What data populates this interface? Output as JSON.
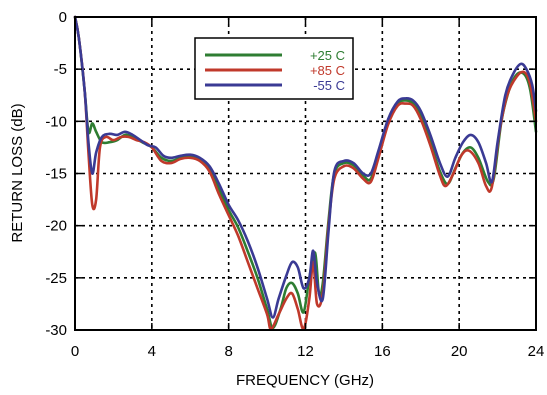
{
  "chart_data": {
    "type": "line",
    "title": "",
    "xlabel": "FREQUENCY (GHz)",
    "ylabel": "RETURN LOSS (dB)",
    "xlim": [
      0,
      24
    ],
    "ylim": [
      -30,
      0
    ],
    "xticks": [
      "0",
      "4",
      "8",
      "12",
      "16",
      "20",
      "24"
    ],
    "yticks": [
      "0",
      "-5",
      "-10",
      "-15",
      "-20",
      "-25",
      "-30"
    ],
    "grid": true,
    "legend_position": "top-center",
    "series": [
      {
        "name": "+25 C",
        "color": "#2e7d32",
        "points": [
          [
            0,
            0
          ],
          [
            0.2,
            -2
          ],
          [
            0.5,
            -7
          ],
          [
            0.7,
            -11
          ],
          [
            0.9,
            -10.2
          ],
          [
            1.1,
            -11
          ],
          [
            1.4,
            -12
          ],
          [
            1.8,
            -12
          ],
          [
            2.2,
            -11.8
          ],
          [
            2.6,
            -11.3
          ],
          [
            3,
            -11.5
          ],
          [
            3.5,
            -12
          ],
          [
            4,
            -12.5
          ],
          [
            4.5,
            -13.5
          ],
          [
            5,
            -13.8
          ],
          [
            5.5,
            -13.5
          ],
          [
            6,
            -13.3
          ],
          [
            6.5,
            -13.6
          ],
          [
            7,
            -14.5
          ],
          [
            7.5,
            -16.5
          ],
          [
            8,
            -18.5
          ],
          [
            8.5,
            -20.2
          ],
          [
            9,
            -22.5
          ],
          [
            9.5,
            -25
          ],
          [
            10,
            -28
          ],
          [
            10.3,
            -29.8
          ],
          [
            10.7,
            -28
          ],
          [
            11,
            -26
          ],
          [
            11.3,
            -25.5
          ],
          [
            11.6,
            -26.5
          ],
          [
            11.9,
            -28.3
          ],
          [
            12.2,
            -25
          ],
          [
            12.5,
            -22.6
          ],
          [
            12.7,
            -26.5
          ],
          [
            12.9,
            -25.5
          ],
          [
            13.2,
            -19.5
          ],
          [
            13.5,
            -15
          ],
          [
            14,
            -14
          ],
          [
            14.5,
            -14.2
          ],
          [
            15,
            -15.2
          ],
          [
            15.4,
            -15.5
          ],
          [
            15.8,
            -13
          ],
          [
            16.3,
            -10
          ],
          [
            16.8,
            -8.3
          ],
          [
            17.2,
            -8
          ],
          [
            17.6,
            -8.3
          ],
          [
            18,
            -9.5
          ],
          [
            18.5,
            -12
          ],
          [
            19,
            -14.8
          ],
          [
            19.4,
            -16
          ],
          [
            19.8,
            -14.5
          ],
          [
            20.2,
            -13
          ],
          [
            20.6,
            -12.5
          ],
          [
            21,
            -13.5
          ],
          [
            21.5,
            -15.8
          ],
          [
            21.8,
            -15.5
          ],
          [
            22.2,
            -10
          ],
          [
            22.6,
            -7
          ],
          [
            23,
            -5.5
          ],
          [
            23.4,
            -5.5
          ],
          [
            23.7,
            -7
          ],
          [
            24,
            -11
          ]
        ]
      },
      {
        "name": "+85 C",
        "color": "#c0392b",
        "points": [
          [
            0,
            0
          ],
          [
            0.2,
            -2
          ],
          [
            0.5,
            -7
          ],
          [
            0.7,
            -13
          ],
          [
            0.9,
            -18
          ],
          [
            1.1,
            -17.5
          ],
          [
            1.3,
            -12.5
          ],
          [
            1.6,
            -11.5
          ],
          [
            2,
            -11.8
          ],
          [
            2.4,
            -11.5
          ],
          [
            2.8,
            -11.5
          ],
          [
            3.2,
            -11.8
          ],
          [
            3.6,
            -12
          ],
          [
            4,
            -12.5
          ],
          [
            4.5,
            -13.8
          ],
          [
            5,
            -14
          ],
          [
            5.5,
            -13.6
          ],
          [
            6,
            -13.5
          ],
          [
            6.5,
            -13.8
          ],
          [
            7,
            -14.8
          ],
          [
            7.5,
            -17
          ],
          [
            8,
            -19
          ],
          [
            8.5,
            -21
          ],
          [
            9,
            -23.5
          ],
          [
            9.5,
            -26
          ],
          [
            10,
            -28.5
          ],
          [
            10.2,
            -30
          ],
          [
            10.6,
            -28.5
          ],
          [
            11,
            -27
          ],
          [
            11.3,
            -26.5
          ],
          [
            11.6,
            -28
          ],
          [
            11.9,
            -30
          ],
          [
            12.2,
            -27
          ],
          [
            12.4,
            -23.5
          ],
          [
            12.6,
            -27.5
          ],
          [
            12.9,
            -26.5
          ],
          [
            13.2,
            -20
          ],
          [
            13.5,
            -15.5
          ],
          [
            14,
            -14.3
          ],
          [
            14.5,
            -14.5
          ],
          [
            15,
            -15.5
          ],
          [
            15.4,
            -15.8
          ],
          [
            15.8,
            -13.5
          ],
          [
            16.3,
            -10.3
          ],
          [
            16.8,
            -8.5
          ],
          [
            17.2,
            -8.3
          ],
          [
            17.6,
            -8.5
          ],
          [
            18,
            -9.8
          ],
          [
            18.5,
            -12.3
          ],
          [
            19,
            -15.2
          ],
          [
            19.3,
            -16.2
          ],
          [
            19.7,
            -15
          ],
          [
            20.1,
            -13.3
          ],
          [
            20.5,
            -12.8
          ],
          [
            21,
            -14
          ],
          [
            21.4,
            -16.2
          ],
          [
            21.7,
            -16.3
          ],
          [
            22.1,
            -11
          ],
          [
            22.5,
            -7.5
          ],
          [
            23,
            -5.7
          ],
          [
            23.4,
            -5.3
          ],
          [
            23.7,
            -6.5
          ],
          [
            24,
            -10
          ]
        ]
      },
      {
        "name": "-55 C",
        "color": "#3a3a94",
        "points": [
          [
            0,
            0
          ],
          [
            0.2,
            -2
          ],
          [
            0.5,
            -7
          ],
          [
            0.7,
            -12
          ],
          [
            0.9,
            -15
          ],
          [
            1.1,
            -13
          ],
          [
            1.4,
            -11.5
          ],
          [
            1.8,
            -11.2
          ],
          [
            2.2,
            -11.3
          ],
          [
            2.6,
            -11
          ],
          [
            3,
            -11.3
          ],
          [
            3.4,
            -11.8
          ],
          [
            3.8,
            -12.3
          ],
          [
            4.2,
            -12.5
          ],
          [
            4.6,
            -13.3
          ],
          [
            5,
            -13.5
          ],
          [
            5.5,
            -13.3
          ],
          [
            6,
            -13.2
          ],
          [
            6.5,
            -13.5
          ],
          [
            7,
            -14.3
          ],
          [
            7.5,
            -16
          ],
          [
            8,
            -18
          ],
          [
            8.5,
            -19.5
          ],
          [
            9,
            -21.5
          ],
          [
            9.5,
            -24
          ],
          [
            10,
            -27
          ],
          [
            10.3,
            -28.8
          ],
          [
            10.6,
            -27
          ],
          [
            11,
            -24.8
          ],
          [
            11.3,
            -23.5
          ],
          [
            11.6,
            -24
          ],
          [
            11.9,
            -26
          ],
          [
            12.2,
            -25
          ],
          [
            12.4,
            -22.4
          ],
          [
            12.6,
            -25.5
          ],
          [
            12.9,
            -27
          ],
          [
            13.2,
            -20.5
          ],
          [
            13.5,
            -14.8
          ],
          [
            14,
            -13.8
          ],
          [
            14.5,
            -14
          ],
          [
            15,
            -15
          ],
          [
            15.4,
            -15
          ],
          [
            15.8,
            -12.8
          ],
          [
            16.3,
            -9.8
          ],
          [
            16.8,
            -8.1
          ],
          [
            17.2,
            -7.8
          ],
          [
            17.6,
            -8
          ],
          [
            18,
            -9
          ],
          [
            18.5,
            -11.3
          ],
          [
            19,
            -14
          ],
          [
            19.4,
            -15.3
          ],
          [
            19.8,
            -13.5
          ],
          [
            20.2,
            -12
          ],
          [
            20.6,
            -11.3
          ],
          [
            21,
            -12
          ],
          [
            21.4,
            -14
          ],
          [
            21.7,
            -15.8
          ],
          [
            22,
            -12
          ],
          [
            22.4,
            -7.5
          ],
          [
            22.8,
            -5.5
          ],
          [
            23.2,
            -4.5
          ],
          [
            23.5,
            -5
          ],
          [
            23.8,
            -6.5
          ],
          [
            24,
            -9
          ]
        ]
      }
    ]
  }
}
